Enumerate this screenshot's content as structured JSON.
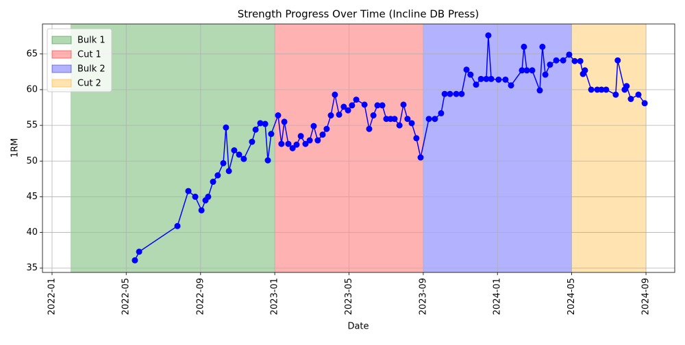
{
  "chart_data": {
    "type": "line",
    "title": "Strength Progress Over Time (Incline DB Press)",
    "xlabel": "Date",
    "ylabel": "1RM",
    "x": [
      2022.372,
      2022.391,
      2022.563,
      2022.612,
      2022.643,
      2022.671,
      2022.689,
      2022.701,
      2022.723,
      2022.744,
      2022.769,
      2022.781,
      2022.794,
      2022.818,
      2022.84,
      2022.861,
      2022.898,
      2022.914,
      2022.935,
      2022.957,
      2022.969,
      2022.984,
      2023.015,
      2023.03,
      2023.043,
      2023.061,
      2023.08,
      2023.098,
      2023.117,
      2023.138,
      2023.157,
      2023.175,
      2023.193,
      2023.215,
      2023.233,
      2023.252,
      2023.27,
      2023.289,
      2023.31,
      2023.329,
      2023.347,
      2023.366,
      2023.403,
      2023.424,
      2023.443,
      2023.461,
      2023.483,
      2023.501,
      2023.52,
      2023.538,
      2023.56,
      2023.578,
      2023.596,
      2023.615,
      2023.636,
      2023.655,
      2023.692,
      2023.719,
      2023.747,
      2023.763,
      2023.787,
      2023.815,
      2023.839,
      2023.861,
      2023.879,
      2023.904,
      2023.926,
      2023.95,
      2023.959,
      2023.972,
      2024.005,
      2024.036,
      2024.061,
      2024.11,
      2024.119,
      2024.132,
      2024.156,
      2024.19,
      2024.202,
      2024.215,
      2024.236,
      2024.264,
      2024.295,
      2024.322,
      2024.347,
      2024.372,
      2024.384,
      2024.393,
      2024.421,
      2024.448,
      2024.467,
      2024.488,
      2024.531,
      2024.54,
      2024.571,
      2024.58,
      2024.599,
      2024.633,
      2024.661
    ],
    "series": [
      {
        "color": "#0000ff",
        "values": [
          36.1,
          37.3,
          40.9,
          45.8,
          45.0,
          43.1,
          44.5,
          45.0,
          47.1,
          48.0,
          49.7,
          54.7,
          48.6,
          51.5,
          50.9,
          50.3,
          52.7,
          54.4,
          55.3,
          55.2,
          50.1,
          53.8,
          56.4,
          52.4,
          55.5,
          52.4,
          51.8,
          52.3,
          53.5,
          52.4,
          52.9,
          54.9,
          52.9,
          53.7,
          54.5,
          56.4,
          59.3,
          56.5,
          57.6,
          57.1,
          57.8,
          58.6,
          57.9,
          54.5,
          56.4,
          57.8,
          57.8,
          55.9,
          55.9,
          55.9,
          55.0,
          57.9,
          55.9,
          55.3,
          53.2,
          50.5,
          55.9,
          55.9,
          56.7,
          59.4,
          59.4,
          59.4,
          59.4,
          62.8,
          62.1,
          60.7,
          61.5,
          61.5,
          67.6,
          61.5,
          61.4,
          61.4,
          60.6,
          62.7,
          66.0,
          62.7,
          62.7,
          59.9,
          66.0,
          62.1,
          63.5,
          64.1,
          64.1,
          64.9,
          64.0,
          64.0,
          62.2,
          62.7,
          60.0,
          60.0,
          60.0,
          60.0,
          59.3,
          64.1,
          60.0,
          60.5,
          58.7,
          59.3,
          58.1
        ]
      }
    ],
    "spans": [
      {
        "name": "Bulk 1",
        "start": 2022.083,
        "end": 2023.0,
        "color": "#008000"
      },
      {
        "name": "Cut 1",
        "start": 2023.0,
        "end": 2023.667,
        "color": "#ff0000"
      },
      {
        "name": "Bulk 2",
        "start": 2023.667,
        "end": 2024.333,
        "color": "#0000ff"
      },
      {
        "name": "Cut 2",
        "start": 2024.333,
        "end": 2024.667,
        "color": "#ffa500"
      }
    ],
    "span_alpha": 0.3,
    "xlim": [
      2021.957,
      2024.796
    ],
    "xticks": [
      {
        "value": 2022.0,
        "label": "2022-01"
      },
      {
        "value": 2022.333,
        "label": "2022-05"
      },
      {
        "value": 2022.667,
        "label": "2022-09"
      },
      {
        "value": 2023.0,
        "label": "2023-01"
      },
      {
        "value": 2023.333,
        "label": "2023-05"
      },
      {
        "value": 2023.667,
        "label": "2023-09"
      },
      {
        "value": 2024.0,
        "label": "2024-01"
      },
      {
        "value": 2024.333,
        "label": "2024-05"
      },
      {
        "value": 2024.667,
        "label": "2024-09"
      }
    ],
    "ylim": [
      34.4,
      69.2
    ],
    "yticks": [
      35,
      40,
      45,
      50,
      55,
      60,
      65
    ],
    "grid": true,
    "legend": "upper left",
    "marker": "circle"
  }
}
